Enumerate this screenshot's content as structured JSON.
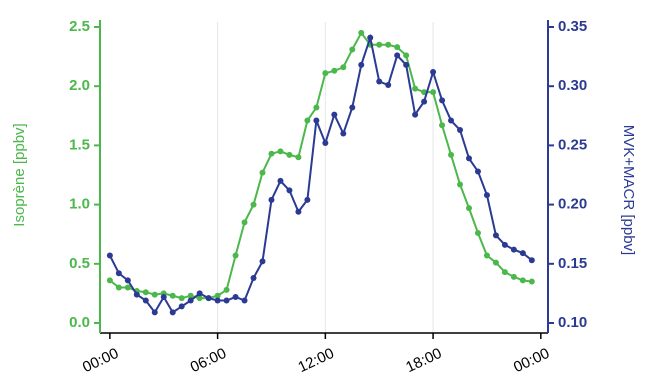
{
  "chart_data": {
    "type": "line",
    "ylabel": "Isoprène [ppbv]",
    "y2label": "MVK+MACR [ppbv]",
    "x": [
      0,
      0.5,
      1,
      1.5,
      2,
      2.5,
      3,
      3.5,
      4,
      4.5,
      5,
      5.5,
      6,
      6.5,
      7,
      7.5,
      8,
      8.5,
      9,
      9.5,
      10,
      10.5,
      11,
      11.5,
      12,
      12.5,
      13,
      13.5,
      14,
      14.5,
      15,
      15.5,
      16,
      16.5,
      17,
      17.5,
      18,
      18.5,
      19,
      19.5,
      20,
      20.5,
      21,
      21.5,
      22,
      22.5,
      23,
      23.5
    ],
    "xlim": [
      -0.55,
      24.4
    ],
    "xticks": [
      {
        "value": 0,
        "label": "00:00"
      },
      {
        "value": 6,
        "label": "06:00"
      },
      {
        "value": 12,
        "label": "12:00"
      },
      {
        "value": 18,
        "label": "18:00"
      },
      {
        "value": 24,
        "label": "00:00"
      }
    ],
    "ylim": [
      0,
      2.5
    ],
    "yticks": [
      {
        "value": 0,
        "label": "0.0"
      },
      0.5,
      {
        "value": 1,
        "label": "1.0"
      },
      1.5,
      {
        "value": 2,
        "label": "2.0"
      },
      2.5
    ],
    "y2lim": [
      0.1,
      0.35
    ],
    "y2ticks": [
      {
        "value": 0.1,
        "label": "0.10"
      },
      0.15,
      {
        "value": 0.2,
        "label": "0.20"
      },
      0.25,
      {
        "value": 0.3,
        "label": "0.30"
      },
      0.35
    ],
    "xgrid": true,
    "series": [
      {
        "name": "Isoprène",
        "color": "#4cb84c",
        "values": [
          0.36,
          0.3,
          0.3,
          0.27,
          0.26,
          0.24,
          0.25,
          0.23,
          0.21,
          0.23,
          0.21,
          0.21,
          0.23,
          0.28,
          0.57,
          0.85,
          1.0,
          1.27,
          1.43,
          1.45,
          1.42,
          1.4,
          1.71,
          1.82,
          2.11,
          2.13,
          2.16,
          2.31,
          2.45,
          2.35,
          2.35,
          2.35,
          2.33,
          2.26,
          1.98,
          1.95,
          1.95,
          1.67,
          1.42,
          1.17,
          0.97,
          0.76,
          0.57,
          0.51,
          0.43,
          0.39,
          0.36,
          0.35
        ]
      },
      {
        "name": "MVK+MACR",
        "color": "#2b3a93",
        "axis": "y2",
        "values": [
          0.157,
          0.142,
          0.136,
          0.124,
          0.119,
          0.109,
          0.122,
          0.109,
          0.114,
          0.119,
          0.125,
          0.121,
          0.119,
          0.119,
          0.122,
          0.119,
          0.138,
          0.152,
          0.204,
          0.22,
          0.212,
          0.194,
          0.204,
          0.271,
          0.252,
          0.276,
          0.26,
          0.282,
          0.318,
          0.341,
          0.304,
          0.301,
          0.326,
          0.318,
          0.276,
          0.287,
          0.312,
          0.288,
          0.271,
          0.263,
          0.239,
          0.228,
          0.208,
          0.174,
          0.166,
          0.162,
          0.159,
          0.153
        ]
      }
    ]
  }
}
